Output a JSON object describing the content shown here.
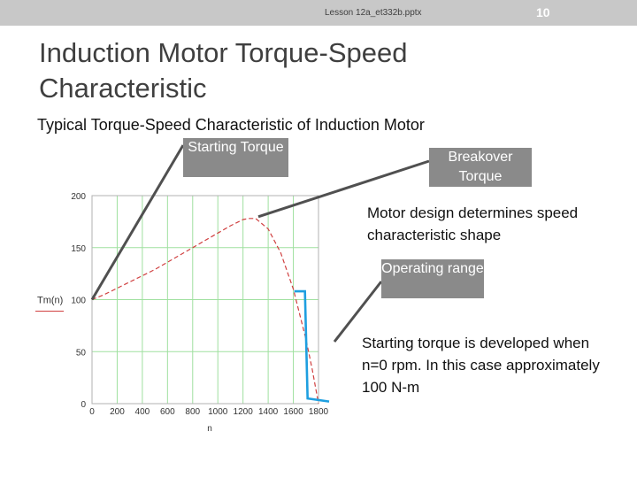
{
  "header": {
    "filename": "Lesson 12a_et332b.pptx",
    "page_number": "10"
  },
  "slide": {
    "title": "Induction Motor Torque-Speed Characteristic",
    "subtitle": "Typical Torque-Speed Characteristic of Induction Motor",
    "callouts": {
      "starting_torque": "Starting Torque",
      "breakover_torque": "Breakover Torque",
      "operating_range": "Operating range"
    },
    "notes": {
      "design": "Motor design determines speed characteristic shape",
      "starting": "Starting torque is developed when n=0 rpm.  In this case approximately 100 N-m"
    },
    "colors": {
      "curve": "#d04040",
      "operating_marker": "#1e9fe0",
      "callout_line": "#505050",
      "grid": "#9fe09f"
    }
  },
  "chart_data": {
    "type": "line",
    "xlabel": "n",
    "ylabel": "Tm(n)",
    "xlim": [
      0,
      1800
    ],
    "ylim": [
      0,
      200
    ],
    "x_ticks": [
      "0",
      "200",
      "400",
      "600",
      "800",
      "1000",
      "1200",
      "1400",
      "1600",
      "1800"
    ],
    "y_ticks": [
      "0",
      "50",
      "100",
      "150",
      "200"
    ],
    "grid": true,
    "series": [
      {
        "x": [
          0,
          100,
          200,
          300,
          400,
          500,
          600,
          700,
          800,
          900,
          1000,
          1100,
          1200,
          1250,
          1300,
          1400,
          1500,
          1600,
          1700,
          1750,
          1800
        ],
        "y": [
          100,
          105,
          111,
          117,
          123,
          129,
          136,
          143,
          150,
          157,
          164,
          171,
          177,
          178,
          178,
          168,
          145,
          110,
          62,
          33,
          0
        ]
      }
    ],
    "operating_range_x": [
      1650,
      1800
    ]
  }
}
